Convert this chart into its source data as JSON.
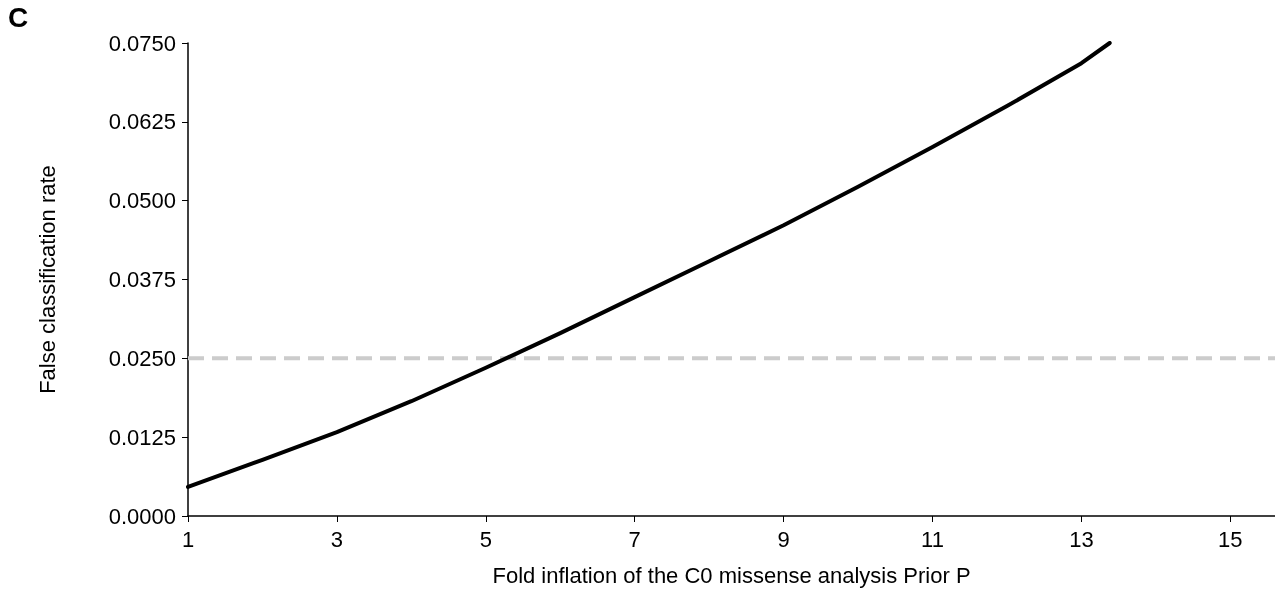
{
  "chart_data": {
    "type": "line",
    "xlabel": "Fold inflation of the C0 missense analysis Prior P",
    "ylabel": "False classification rate",
    "annotations": [
      "C"
    ],
    "series": [
      {
        "color": "#000000",
        "x": [
          1,
          2,
          3,
          4,
          5,
          6,
          7,
          8,
          9,
          10,
          11,
          12,
          13,
          13.38
        ],
        "values": [
          0.0046,
          0.0089,
          0.0133,
          0.0182,
          0.0235,
          0.029,
          0.0347,
          0.0404,
          0.0461,
          0.0522,
          0.0585,
          0.065,
          0.0718,
          0.075
        ]
      }
    ],
    "xlim": [
      1,
      15.6
    ],
    "xticks": [
      1,
      3,
      5,
      7,
      9,
      11,
      13,
      15
    ],
    "ylim": [
      0,
      0.075
    ],
    "yticks": [
      {
        "value": 0,
        "label": "0.0000"
      },
      {
        "value": 0.0125,
        "label": "0.0125"
      },
      {
        "value": 0.025,
        "label": "0.0250"
      },
      {
        "value": 0.0375,
        "label": "0.0375"
      },
      {
        "value": 0.05,
        "label": "0.0500"
      },
      {
        "value": 0.0625,
        "label": "0.0625"
      },
      {
        "value": 0.075,
        "label": "0.0750"
      }
    ],
    "ref_lines": [
      {
        "axis": "y",
        "value": 0.025,
        "color": "#cccccc",
        "line_style": "dashed"
      }
    ],
    "grid": false,
    "marker": "none",
    "line_style": "solid"
  }
}
